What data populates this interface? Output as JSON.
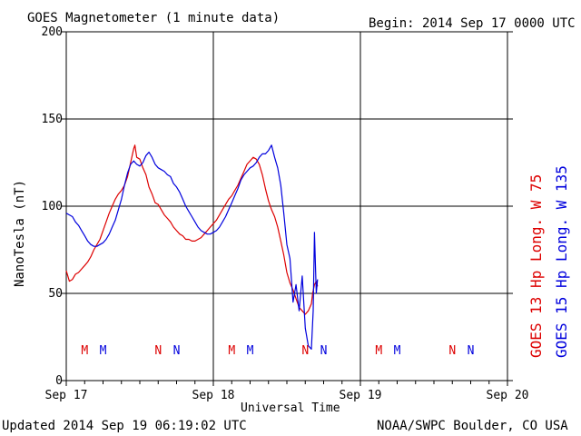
{
  "header": {
    "title": "GOES Magnetometer (1 minute data)",
    "begin": "Begin:  2014 Sep 17 0000 UTC"
  },
  "footer": {
    "updated": "Updated 2014 Sep 19 06:19:02 UTC",
    "credit": "NOAA/SWPC Boulder, CO USA"
  },
  "colors": {
    "goes13": "#dd0000",
    "goes15": "#0000dd",
    "axes": "#000000"
  },
  "chart_data": {
    "type": "line",
    "title": "GOES Magnetometer (1 minute data)",
    "ylabel": "NanoTesla (nT)",
    "xlabel": "Universal Time",
    "ylim": [
      0,
      200
    ],
    "yticks": [
      0,
      50,
      100,
      150,
      200
    ],
    "xlim": [
      0,
      72
    ],
    "x_units": "hours since 2014 Sep 17 0000 UTC",
    "xticks": [
      {
        "x": 0,
        "label": "Sep 17"
      },
      {
        "x": 24,
        "label": "Sep 18"
      },
      {
        "x": 48,
        "label": "Sep 19"
      },
      {
        "x": 72,
        "label": "Sep 20"
      }
    ],
    "grid": true,
    "legend": "right-vertical",
    "series": [
      {
        "name": "GOES 13 Hp  Long. W 75",
        "color": "#dd0000",
        "points": [
          [
            0,
            63
          ],
          [
            0.5,
            57
          ],
          [
            1,
            58
          ],
          [
            1.5,
            61
          ],
          [
            2,
            62
          ],
          [
            2.5,
            64
          ],
          [
            3,
            66
          ],
          [
            3.5,
            68
          ],
          [
            4,
            71
          ],
          [
            4.5,
            75
          ],
          [
            5,
            78
          ],
          [
            5.5,
            81
          ],
          [
            6,
            86
          ],
          [
            6.5,
            91
          ],
          [
            7,
            96
          ],
          [
            7.5,
            100
          ],
          [
            8,
            104
          ],
          [
            8.5,
            107
          ],
          [
            9,
            109
          ],
          [
            9.5,
            112
          ],
          [
            10,
            117
          ],
          [
            10.5,
            125
          ],
          [
            11,
            133
          ],
          [
            11.2,
            135
          ],
          [
            11.5,
            128
          ],
          [
            12,
            127
          ],
          [
            12.5,
            122
          ],
          [
            13,
            118
          ],
          [
            13.5,
            111
          ],
          [
            14,
            107
          ],
          [
            14.5,
            102
          ],
          [
            15,
            101
          ],
          [
            15.5,
            98
          ],
          [
            16,
            95
          ],
          [
            16.5,
            93
          ],
          [
            17,
            91
          ],
          [
            17.5,
            88
          ],
          [
            18,
            86
          ],
          [
            18.5,
            84
          ],
          [
            19,
            83
          ],
          [
            19.5,
            81
          ],
          [
            20,
            81
          ],
          [
            20.5,
            80
          ],
          [
            21,
            80
          ],
          [
            21.5,
            81
          ],
          [
            22,
            82
          ],
          [
            22.5,
            84
          ],
          [
            23,
            86
          ],
          [
            23.5,
            88
          ],
          [
            24,
            90
          ],
          [
            24.5,
            92
          ],
          [
            25,
            95
          ],
          [
            25.5,
            98
          ],
          [
            26,
            101
          ],
          [
            26.5,
            104
          ],
          [
            27,
            106
          ],
          [
            27.5,
            109
          ],
          [
            28,
            112
          ],
          [
            28.5,
            116
          ],
          [
            29,
            120
          ],
          [
            29.5,
            124
          ],
          [
            30,
            126
          ],
          [
            30.5,
            128
          ],
          [
            31,
            127
          ],
          [
            31.5,
            124
          ],
          [
            32,
            118
          ],
          [
            32.5,
            110
          ],
          [
            33,
            103
          ],
          [
            33.5,
            98
          ],
          [
            34,
            94
          ],
          [
            34.5,
            88
          ],
          [
            35,
            80
          ],
          [
            35.5,
            72
          ],
          [
            36,
            62
          ],
          [
            36.5,
            56
          ],
          [
            37,
            52
          ],
          [
            37.5,
            47
          ],
          [
            38,
            42
          ],
          [
            38.5,
            40
          ],
          [
            39,
            38
          ],
          [
            39.5,
            40
          ],
          [
            40,
            44
          ],
          [
            40.2,
            50
          ],
          [
            40.5,
            55
          ],
          [
            40.8,
            57
          ],
          [
            41,
            54
          ]
        ]
      },
      {
        "name": "GOES 15 Hp  Long. W 135",
        "color": "#0000dd",
        "points": [
          [
            0,
            96
          ],
          [
            0.5,
            95
          ],
          [
            1,
            94
          ],
          [
            1.5,
            91
          ],
          [
            2,
            89
          ],
          [
            2.5,
            86
          ],
          [
            3,
            83
          ],
          [
            3.5,
            80
          ],
          [
            4,
            78
          ],
          [
            4.5,
            77
          ],
          [
            5,
            77
          ],
          [
            5.5,
            78
          ],
          [
            6,
            79
          ],
          [
            6.5,
            81
          ],
          [
            7,
            84
          ],
          [
            7.5,
            88
          ],
          [
            8,
            92
          ],
          [
            8.5,
            98
          ],
          [
            9,
            104
          ],
          [
            9.5,
            112
          ],
          [
            10,
            119
          ],
          [
            10.5,
            124
          ],
          [
            11,
            126
          ],
          [
            11.5,
            124
          ],
          [
            12,
            123
          ],
          [
            12.5,
            125
          ],
          [
            13,
            129
          ],
          [
            13.5,
            131
          ],
          [
            14,
            128
          ],
          [
            14.5,
            124
          ],
          [
            15,
            122
          ],
          [
            15.5,
            121
          ],
          [
            16,
            120
          ],
          [
            16.5,
            118
          ],
          [
            17,
            117
          ],
          [
            17.5,
            113
          ],
          [
            18,
            111
          ],
          [
            18.5,
            108
          ],
          [
            19,
            104
          ],
          [
            19.5,
            100
          ],
          [
            20,
            97
          ],
          [
            20.5,
            94
          ],
          [
            21,
            91
          ],
          [
            21.5,
            88
          ],
          [
            22,
            86
          ],
          [
            22.5,
            85
          ],
          [
            23,
            84
          ],
          [
            23.5,
            84
          ],
          [
            24,
            85
          ],
          [
            24.5,
            86
          ],
          [
            25,
            88
          ],
          [
            25.5,
            91
          ],
          [
            26,
            94
          ],
          [
            26.5,
            98
          ],
          [
            27,
            102
          ],
          [
            27.5,
            106
          ],
          [
            28,
            110
          ],
          [
            28.5,
            115
          ],
          [
            29,
            118
          ],
          [
            29.5,
            120
          ],
          [
            30,
            122
          ],
          [
            30.5,
            123
          ],
          [
            31,
            125
          ],
          [
            31.5,
            128
          ],
          [
            32,
            130
          ],
          [
            32.5,
            130
          ],
          [
            33,
            132
          ],
          [
            33.5,
            135
          ],
          [
            34,
            128
          ],
          [
            34.5,
            122
          ],
          [
            35,
            112
          ],
          [
            35.5,
            96
          ],
          [
            36,
            78
          ],
          [
            36.5,
            70
          ],
          [
            37,
            45
          ],
          [
            37.5,
            55
          ],
          [
            38,
            40
          ],
          [
            38.5,
            60
          ],
          [
            39,
            30
          ],
          [
            39.5,
            20
          ],
          [
            40,
            18
          ],
          [
            40.3,
            40
          ],
          [
            40.5,
            85
          ],
          [
            40.8,
            50
          ],
          [
            41,
            58
          ]
        ]
      }
    ],
    "event_markers": {
      "goes13": [
        {
          "x": 3,
          "label": "M"
        },
        {
          "x": 15,
          "label": "N"
        },
        {
          "x": 27,
          "label": "M"
        },
        {
          "x": 39,
          "label": "N"
        },
        {
          "x": 51,
          "label": "M"
        },
        {
          "x": 63,
          "label": "N"
        }
      ],
      "goes15": [
        {
          "x": 6,
          "label": "M"
        },
        {
          "x": 18,
          "label": "N"
        },
        {
          "x": 30,
          "label": "M"
        },
        {
          "x": 42,
          "label": "N"
        },
        {
          "x": 54,
          "label": "M"
        },
        {
          "x": 66,
          "label": "N"
        }
      ]
    }
  }
}
